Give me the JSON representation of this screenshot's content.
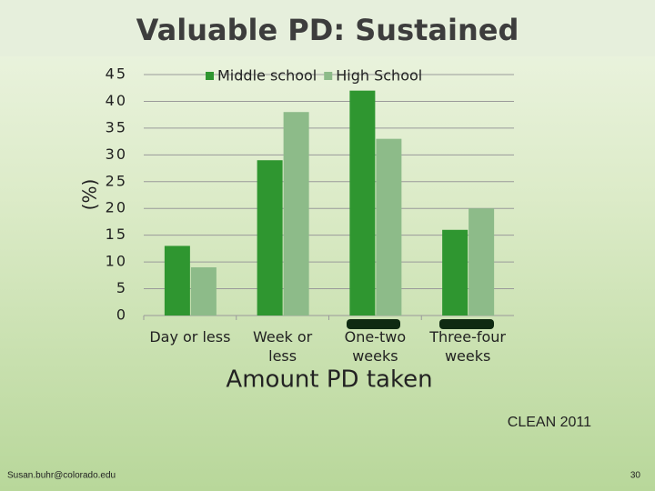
{
  "chart_data": {
    "type": "bar",
    "title": "Valuable PD: Sustained",
    "x_label": "Amount PD taken",
    "y_label": "(%)",
    "categories": [
      "Day or less",
      "Week or less",
      "One-two weeks",
      "Three-four weeks"
    ],
    "series": [
      {
        "name": "Middle school",
        "color": "#2f9630",
        "values": [
          13,
          29,
          42,
          16
        ]
      },
      {
        "name": "High School",
        "color": "#8dbb89",
        "values": [
          9,
          38,
          33,
          20
        ]
      }
    ],
    "ylim": [
      0,
      45
    ],
    "yticks": [
      0,
      5,
      10,
      15,
      20,
      25,
      30,
      35,
      40,
      45
    ],
    "grid": true
  },
  "footer": {
    "source": "CLEAN 2011",
    "email": "Susan.buhr@colorado.edu",
    "page_number": "30"
  }
}
